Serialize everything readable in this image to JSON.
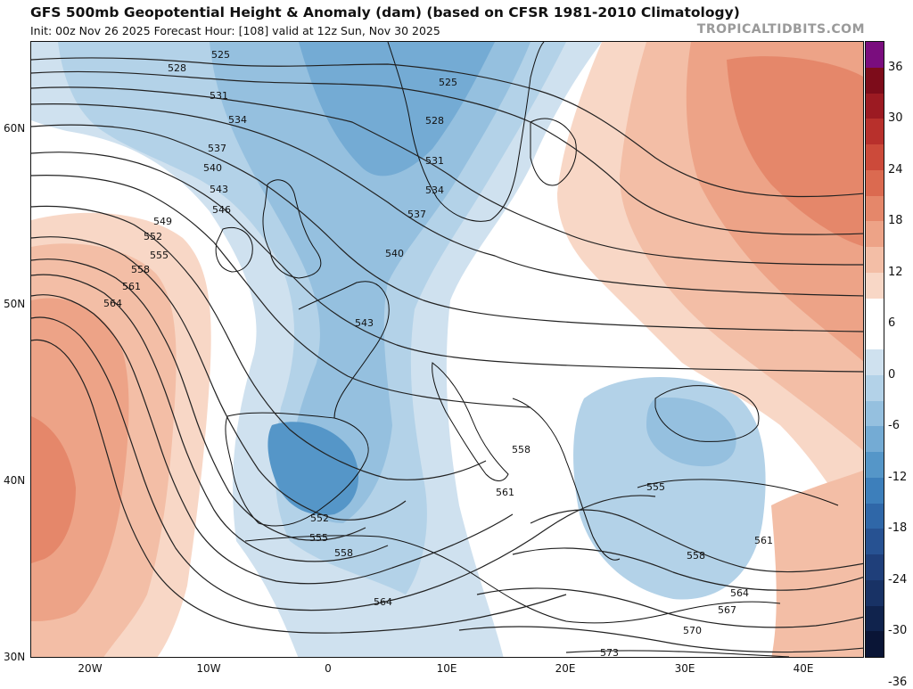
{
  "header": {
    "title": "GFS 500mb Geopotential Height & Anomaly (dam) (based on CFSR 1981-2010 Climatology)",
    "subtitle": "Init: 00z Nov 26 2025   Forecast Hour: [108]   valid at 12z Sun, Nov 30 2025",
    "brand": "TROPICALTIDBITS.COM"
  },
  "axes": {
    "lat_labels": [
      "60N",
      "50N",
      "40N",
      "30N"
    ],
    "lon_labels": [
      "20W",
      "10W",
      "0",
      "10E",
      "20E",
      "30E",
      "40E"
    ]
  },
  "colorbar": {
    "labels": [
      "36",
      "30",
      "24",
      "18",
      "12",
      "6",
      "0",
      "-6",
      "-12",
      "-18",
      "-24",
      "-30",
      "-36"
    ],
    "colors": [
      "#7a0d7e",
      "#7d0c1a",
      "#9c1a22",
      "#b8302c",
      "#cc4a3a",
      "#db6a50",
      "#e5876a",
      "#eda387",
      "#f3bea6",
      "#f8d7c6",
      "#ffffff",
      "#ffffff",
      "#cfe1ef",
      "#b3d2e8",
      "#95c0df",
      "#74abd4",
      "#5596c8",
      "#3d7fbb",
      "#2f67a8",
      "#275292",
      "#1f3f7a",
      "#183265",
      "#10234d",
      "#0a1536"
    ]
  },
  "contours": {
    "labels": [
      "525",
      "528",
      "531",
      "534",
      "537",
      "540",
      "543",
      "546",
      "549",
      "552",
      "555",
      "558",
      "561",
      "564",
      "525",
      "528",
      "531",
      "534",
      "537",
      "540",
      "543",
      "558",
      "561",
      "555",
      "552",
      "555",
      "558",
      "564",
      "558",
      "561",
      "564",
      "567",
      "570",
      "573"
    ]
  },
  "map_style": {
    "ocean_blue": "#9cc6e3",
    "deep_blue": "#4d8fc6",
    "warm_red": "#e0735a",
    "warm_light": "#f6c6ae"
  }
}
